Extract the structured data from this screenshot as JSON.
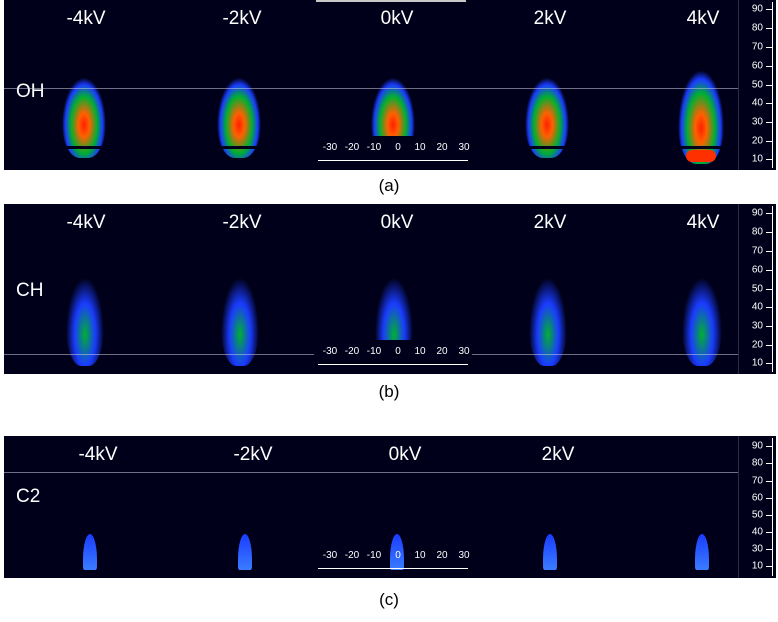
{
  "panels": [
    {
      "species": "OH",
      "caption": "(a)",
      "voltages": [
        "-4kV",
        "-2kV",
        "0kV",
        "2kV",
        "4kV"
      ]
    },
    {
      "species": "CH",
      "caption": "(b)",
      "voltages": [
        "-4kV",
        "-2kV",
        "0kV",
        "2kV",
        "4kV"
      ]
    },
    {
      "species": "C2",
      "caption": "(c)",
      "voltages": [
        "-4kV",
        "-2kV",
        "0kV",
        "2kV",
        ""
      ]
    }
  ],
  "y_scale": [
    "90",
    "80",
    "70",
    "60",
    "50",
    "40",
    "30",
    "20",
    "10"
  ],
  "x_scale": [
    "-30",
    "-20",
    "-10",
    "0",
    "10",
    "20",
    "30"
  ],
  "colors": {
    "background": "#00001a",
    "blue": "#1a3cff",
    "green": "#00b030",
    "red": "#ff2000"
  }
}
